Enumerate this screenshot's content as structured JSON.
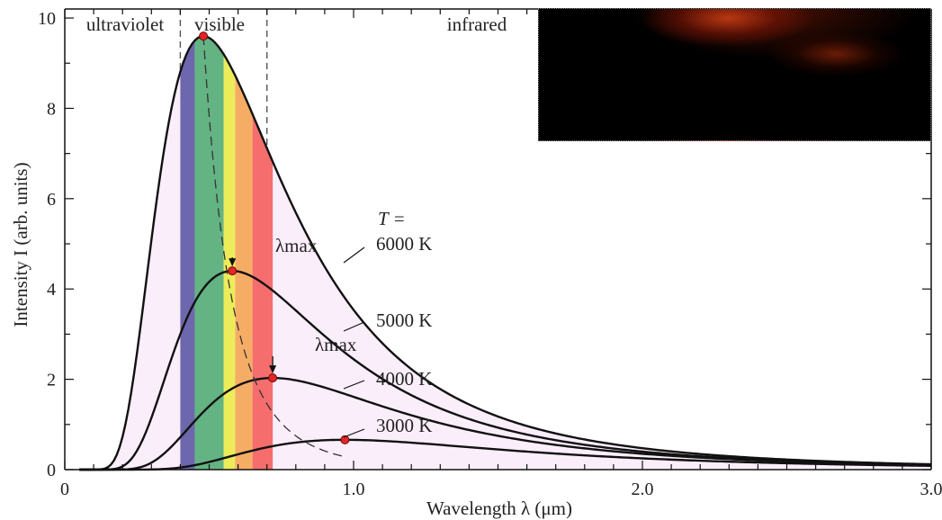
{
  "chart_data": {
    "type": "line",
    "title": "",
    "xlabel": "Wavelength λ (μm)",
    "ylabel": "Intensity I (arb. units)",
    "xlim": [
      0,
      3.0
    ],
    "ylim": [
      0,
      10.2
    ],
    "x_ticks": [
      "0",
      "1.0",
      "2.0",
      "3.0"
    ],
    "y_ticks": [
      "0",
      "2",
      "4",
      "6",
      "8",
      "10"
    ],
    "regions": [
      {
        "label": "ultraviolet",
        "x_range": [
          0,
          0.4
        ]
      },
      {
        "label": "visible",
        "x_range": [
          0.4,
          0.7
        ]
      },
      {
        "label": "infrared",
        "x_range": [
          0.7,
          3.0
        ]
      }
    ],
    "visible_bands": [
      {
        "from": 0.4,
        "to": 0.45,
        "color": "#6d67ad"
      },
      {
        "from": 0.45,
        "to": 0.55,
        "color": "#63b383"
      },
      {
        "from": 0.55,
        "to": 0.59,
        "color": "#ecec5a"
      },
      {
        "from": 0.59,
        "to": 0.65,
        "color": "#f5ad65"
      },
      {
        "from": 0.65,
        "to": 0.72,
        "color": "#f56d6d"
      }
    ],
    "temperature_prefix": "T =",
    "series": [
      {
        "name": "6000 K",
        "temperature_K": 6000,
        "peak_wavelength_um": 0.48,
        "peak_intensity": 9.6
      },
      {
        "name": "5000 K",
        "temperature_K": 5000,
        "peak_wavelength_um": 0.58,
        "peak_intensity": 4.4
      },
      {
        "name": "4000 K",
        "temperature_K": 4000,
        "peak_wavelength_um": 0.72,
        "peak_intensity": 2.03
      },
      {
        "name": "3000 K",
        "temperature_K": 3000,
        "peak_wavelength_um": 0.97,
        "peak_intensity": 0.66
      }
    ],
    "annotations": [
      {
        "text": "λmax",
        "series": "5000 K"
      },
      {
        "text": "λmax",
        "series": "4000 K"
      }
    ],
    "grid": false,
    "legend": "none"
  },
  "inset": {
    "description_icon": "photo-icon"
  }
}
